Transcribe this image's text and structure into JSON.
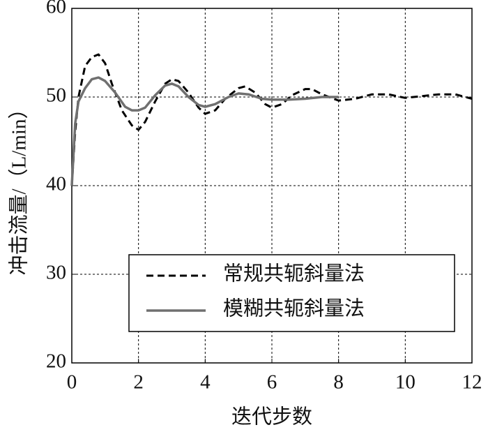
{
  "chart_data": {
    "type": "line",
    "xlabel": "迭代步数",
    "ylabel": "冲击流量/（L/min）",
    "xlim": [
      0,
      12
    ],
    "xticks": [
      0,
      2,
      4,
      6,
      8,
      10,
      12
    ],
    "ylim": [
      20,
      60
    ],
    "yticks": [
      20,
      30,
      40,
      50,
      60
    ],
    "grid": true,
    "legend": "lower-right",
    "series": [
      {
        "name": "常规共轭斜量法",
        "color": "#000000",
        "dash": true,
        "x": [
          0,
          0.1,
          0.2,
          0.4,
          0.6,
          0.8,
          1.0,
          1.2,
          1.5,
          1.8,
          2.0,
          2.2,
          2.5,
          2.8,
          3.0,
          3.2,
          3.5,
          3.8,
          4.0,
          4.3,
          4.6,
          5.0,
          5.2,
          5.5,
          5.8,
          6.0,
          6.3,
          6.6,
          7.0,
          7.2,
          7.5,
          8.0,
          8.5,
          9.0,
          9.5,
          10.0,
          10.5,
          11.0,
          11.5,
          12.0
        ],
        "values": [
          40,
          46,
          50,
          53.5,
          54.5,
          54.8,
          53.8,
          51.5,
          48.5,
          46.8,
          46.3,
          47.2,
          49.5,
          51.5,
          52.0,
          51.8,
          50.5,
          48.8,
          48.1,
          48.5,
          49.8,
          51.0,
          51.2,
          50.5,
          49.2,
          48.8,
          49.2,
          50.2,
          50.9,
          50.9,
          50.3,
          49.6,
          49.8,
          50.3,
          50.3,
          49.9,
          50.1,
          50.3,
          50.3,
          49.8
        ]
      },
      {
        "name": "模糊共轭斜量法",
        "color": "#707070",
        "dash": false,
        "x": [
          0,
          0.1,
          0.2,
          0.4,
          0.6,
          0.8,
          1.0,
          1.3,
          1.6,
          1.8,
          2.0,
          2.2,
          2.5,
          2.8,
          3.0,
          3.2,
          3.5,
          3.8,
          4.0,
          4.3,
          4.7,
          5.0,
          5.3,
          5.7,
          6.0,
          6.5,
          7.0,
          7.5,
          8.0
        ],
        "values": [
          40,
          47,
          49.5,
          51,
          52,
          52.2,
          51.8,
          50.5,
          48.9,
          48.5,
          48.5,
          48.8,
          50.2,
          51.3,
          51.5,
          51.2,
          50.0,
          49.1,
          48.9,
          49.2,
          50.0,
          50.4,
          50.3,
          49.8,
          49.7,
          49.7,
          49.8,
          50.0,
          50.0
        ]
      }
    ]
  }
}
